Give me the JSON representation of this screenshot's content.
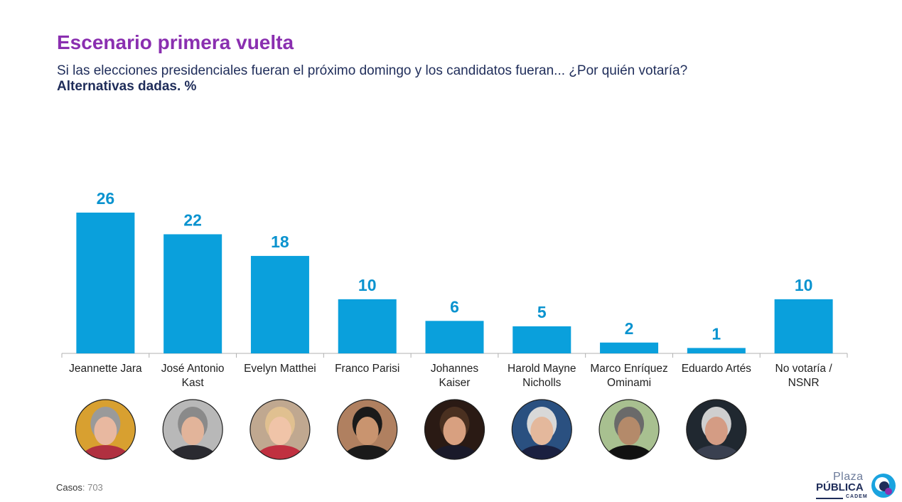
{
  "header": {
    "title": "Escenario primera vuelta",
    "subtitle": "Si las elecciones presidenciales fueran el próximo domingo y los candidatos fueran... ¿Por quién votaría?",
    "subtitle2": "Alternativas dadas. %"
  },
  "chart_data": {
    "type": "bar",
    "categories": [
      [
        "Jeannette Jara"
      ],
      [
        "José Antonio",
        "Kast"
      ],
      [
        "Evelyn Matthei"
      ],
      [
        "Franco Parisi"
      ],
      [
        "Johannes",
        "Kaiser"
      ],
      [
        "Harold Mayne",
        "Nicholls"
      ],
      [
        "Marco Enríquez",
        "Ominami"
      ],
      [
        "Eduardo Artés"
      ],
      [
        "No votaría /",
        "NSNR"
      ]
    ],
    "values": [
      26,
      22,
      18,
      10,
      6,
      5,
      2,
      1,
      10
    ],
    "has_photo": [
      true,
      true,
      true,
      true,
      true,
      true,
      true,
      true,
      false
    ],
    "bar_color": "#0aa0dc",
    "label_color": "#0a93cf",
    "ylim": [
      0,
      30
    ],
    "grid": false,
    "legend": "none"
  },
  "footer": {
    "cases_label": "Casos",
    "cases_value": ": 703",
    "logo_plaza": "Plaza",
    "logo_publica": "PÚBLICA",
    "logo_cadem": "CADEM"
  },
  "colors": {
    "title": "#8a2fb0",
    "text": "#1f2d5a",
    "axis": "#b0b0b0"
  }
}
